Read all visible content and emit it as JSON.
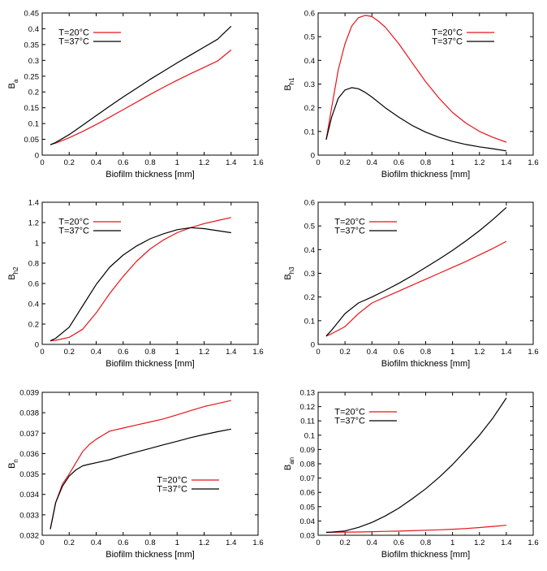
{
  "colors": {
    "t20": "#e8141b",
    "t37": "#000000",
    "axis": "#000000"
  },
  "chart_data": [
    {
      "type": "line",
      "xlabel": "Biofilm thickness [mm]",
      "ylabel": "B_a",
      "ylabel_main": "B",
      "ylabel_sub": "a",
      "xlim": [
        0,
        1.6
      ],
      "ylim": [
        0,
        0.45
      ],
      "xticks": [
        "0",
        "0.2",
        "0.4",
        "0.6",
        "0.8",
        "1",
        "1.2",
        "1.4",
        "1.6"
      ],
      "yticks": [
        "0",
        "0.05",
        "0.1",
        "0.15",
        "0.2",
        "0.25",
        "0.3",
        "0.35",
        "0.4",
        "0.45"
      ],
      "legend": "top-left",
      "series": [
        {
          "name": "T=20°C",
          "color": "#e8141b",
          "x": [
            0.06,
            0.1,
            0.2,
            0.3,
            0.4,
            0.5,
            0.6,
            0.7,
            0.8,
            0.9,
            1.0,
            1.1,
            1.2,
            1.3,
            1.4
          ],
          "y": [
            0.033,
            0.038,
            0.055,
            0.075,
            0.097,
            0.12,
            0.144,
            0.168,
            0.192,
            0.215,
            0.237,
            0.258,
            0.278,
            0.298,
            0.333
          ]
        },
        {
          "name": "T=37°C",
          "color": "#000000",
          "x": [
            0.06,
            0.1,
            0.2,
            0.3,
            0.4,
            0.5,
            0.6,
            0.7,
            0.8,
            0.9,
            1.0,
            1.1,
            1.2,
            1.3,
            1.4
          ],
          "y": [
            0.033,
            0.04,
            0.065,
            0.095,
            0.125,
            0.155,
            0.184,
            0.212,
            0.24,
            0.266,
            0.292,
            0.317,
            0.342,
            0.367,
            0.408
          ]
        }
      ]
    },
    {
      "type": "line",
      "xlabel": "Biofilm thickness [mm]",
      "ylabel": "B_h1",
      "ylabel_main": "B",
      "ylabel_sub": "h1",
      "xlim": [
        0,
        1.6
      ],
      "ylim": [
        0,
        0.6
      ],
      "xticks": [
        "0",
        "0.2",
        "0.4",
        "0.6",
        "0.8",
        "1",
        "1.2",
        "1.4",
        "1.6"
      ],
      "yticks": [
        "0",
        "0.1",
        "0.2",
        "0.3",
        "0.4",
        "0.5",
        "0.6"
      ],
      "legend": "top-right",
      "series": [
        {
          "name": "T=20°C",
          "color": "#e8141b",
          "x": [
            0.06,
            0.1,
            0.15,
            0.2,
            0.25,
            0.3,
            0.35,
            0.4,
            0.45,
            0.5,
            0.6,
            0.7,
            0.8,
            0.9,
            1.0,
            1.1,
            1.2,
            1.3,
            1.4
          ],
          "y": [
            0.065,
            0.2,
            0.36,
            0.47,
            0.545,
            0.58,
            0.59,
            0.585,
            0.565,
            0.54,
            0.47,
            0.39,
            0.31,
            0.24,
            0.18,
            0.135,
            0.1,
            0.075,
            0.055
          ]
        },
        {
          "name": "T=37°C",
          "color": "#000000",
          "x": [
            0.06,
            0.1,
            0.15,
            0.2,
            0.25,
            0.3,
            0.35,
            0.4,
            0.5,
            0.6,
            0.7,
            0.8,
            0.9,
            1.0,
            1.1,
            1.2,
            1.3,
            1.4
          ],
          "y": [
            0.065,
            0.16,
            0.24,
            0.275,
            0.285,
            0.28,
            0.265,
            0.245,
            0.2,
            0.16,
            0.125,
            0.097,
            0.075,
            0.058,
            0.045,
            0.035,
            0.027,
            0.018
          ]
        }
      ]
    },
    {
      "type": "line",
      "xlabel": "Biofilm thickness [mm]",
      "ylabel": "B_h2",
      "ylabel_main": "B",
      "ylabel_sub": "h2",
      "xlim": [
        0,
        1.6
      ],
      "ylim": [
        0,
        1.4
      ],
      "xticks": [
        "0",
        "0.2",
        "0.4",
        "0.6",
        "0.8",
        "1",
        "1.2",
        "1.4",
        "1.6"
      ],
      "yticks": [
        "0",
        "0.2",
        "0.4",
        "0.6",
        "0.8",
        "1",
        "1.2",
        "1.4"
      ],
      "legend": "top-left",
      "series": [
        {
          "name": "T=20°C",
          "color": "#e8141b",
          "x": [
            0.06,
            0.1,
            0.2,
            0.3,
            0.4,
            0.5,
            0.6,
            0.7,
            0.8,
            0.9,
            1.0,
            1.1,
            1.2,
            1.3,
            1.4
          ],
          "y": [
            0.035,
            0.04,
            0.07,
            0.15,
            0.31,
            0.5,
            0.67,
            0.82,
            0.94,
            1.03,
            1.1,
            1.15,
            1.19,
            1.22,
            1.25
          ]
        },
        {
          "name": "T=37°C",
          "color": "#000000",
          "x": [
            0.06,
            0.1,
            0.2,
            0.3,
            0.4,
            0.5,
            0.6,
            0.7,
            0.8,
            0.9,
            1.0,
            1.1,
            1.2,
            1.3,
            1.4
          ],
          "y": [
            0.035,
            0.06,
            0.17,
            0.38,
            0.59,
            0.76,
            0.88,
            0.97,
            1.04,
            1.09,
            1.13,
            1.15,
            1.14,
            1.12,
            1.1
          ]
        }
      ]
    },
    {
      "type": "line",
      "xlabel": "Biofilm thickness [mm]",
      "ylabel": "B_h3",
      "ylabel_main": "B",
      "ylabel_sub": "h3",
      "xlim": [
        0,
        1.6
      ],
      "ylim": [
        0,
        0.6
      ],
      "xticks": [
        "0",
        "0.2",
        "0.4",
        "0.6",
        "0.8",
        "1",
        "1.2",
        "1.4",
        "1.6"
      ],
      "yticks": [
        "0",
        "0.1",
        "0.2",
        "0.3",
        "0.4",
        "0.5",
        "0.6"
      ],
      "legend": "top-left",
      "series": [
        {
          "name": "T=20°C",
          "color": "#e8141b",
          "x": [
            0.06,
            0.1,
            0.2,
            0.3,
            0.4,
            0.5,
            0.6,
            0.7,
            0.8,
            0.9,
            1.0,
            1.1,
            1.2,
            1.3,
            1.4
          ],
          "y": [
            0.035,
            0.045,
            0.075,
            0.13,
            0.175,
            0.2,
            0.225,
            0.25,
            0.275,
            0.3,
            0.325,
            0.35,
            0.378,
            0.405,
            0.435
          ]
        },
        {
          "name": "T=37°C",
          "color": "#000000",
          "x": [
            0.06,
            0.1,
            0.2,
            0.3,
            0.4,
            0.5,
            0.6,
            0.7,
            0.8,
            0.9,
            1.0,
            1.1,
            1.2,
            1.3,
            1.4
          ],
          "y": [
            0.035,
            0.06,
            0.13,
            0.175,
            0.2,
            0.228,
            0.258,
            0.29,
            0.325,
            0.36,
            0.397,
            0.437,
            0.48,
            0.527,
            0.578
          ]
        }
      ]
    },
    {
      "type": "line",
      "xlabel": "Biofilm thickness [mm]",
      "ylabel": "B_n",
      "ylabel_main": "B",
      "ylabel_sub": "n",
      "xlim": [
        0,
        1.6
      ],
      "ylim": [
        0.032,
        0.039
      ],
      "xticks": [
        "0",
        "0.2",
        "0.4",
        "0.6",
        "0.8",
        "1",
        "1.2",
        "1.4",
        "1.6"
      ],
      "yticks": [
        "0.032",
        "0.033",
        "0.034",
        "0.035",
        "0.036",
        "0.037",
        "0.038",
        "0.039"
      ],
      "legend": "bottom-right",
      "series": [
        {
          "name": "T=20°C",
          "color": "#e8141b",
          "x": [
            0.06,
            0.1,
            0.15,
            0.2,
            0.25,
            0.3,
            0.35,
            0.4,
            0.5,
            0.6,
            0.7,
            0.8,
            0.9,
            1.0,
            1.1,
            1.2,
            1.3,
            1.4
          ],
          "y": [
            0.0323,
            0.0336,
            0.0345,
            0.035,
            0.03555,
            0.0361,
            0.03645,
            0.0367,
            0.0371,
            0.03725,
            0.0374,
            0.03755,
            0.0377,
            0.0379,
            0.0381,
            0.0383,
            0.03845,
            0.0386
          ]
        },
        {
          "name": "T=37°C",
          "color": "#000000",
          "x": [
            0.06,
            0.1,
            0.15,
            0.2,
            0.25,
            0.3,
            0.35,
            0.4,
            0.5,
            0.6,
            0.7,
            0.8,
            0.9,
            1.0,
            1.1,
            1.2,
            1.3,
            1.4
          ],
          "y": [
            0.0323,
            0.0336,
            0.0344,
            0.0349,
            0.0352,
            0.0354,
            0.03548,
            0.03555,
            0.0357,
            0.0359,
            0.03608,
            0.03625,
            0.03643,
            0.0366,
            0.03678,
            0.03693,
            0.03707,
            0.0372
          ]
        }
      ]
    },
    {
      "type": "line",
      "xlabel": "Biofilm thickness [mm]",
      "ylabel": "B_an",
      "ylabel_main": "B",
      "ylabel_sub": "an",
      "xlim": [
        0,
        1.6
      ],
      "ylim": [
        0.03,
        0.13
      ],
      "xticks": [
        "0",
        "0.2",
        "0.4",
        "0.6",
        "0.8",
        "1",
        "1.2",
        "1.4",
        "1.6"
      ],
      "yticks": [
        "0.03",
        "0.04",
        "0.05",
        "0.06",
        "0.07",
        "0.08",
        "0.09",
        "0.1",
        "0.11",
        "0.12",
        "0.13"
      ],
      "legend": "top-left",
      "series": [
        {
          "name": "T=20°C",
          "color": "#e8141b",
          "x": [
            0.06,
            0.1,
            0.2,
            0.3,
            0.4,
            0.5,
            0.6,
            0.7,
            0.8,
            0.9,
            1.0,
            1.1,
            1.2,
            1.3,
            1.4
          ],
          "y": [
            0.032,
            0.0321,
            0.0322,
            0.0323,
            0.0325,
            0.0327,
            0.0329,
            0.0332,
            0.0335,
            0.0338,
            0.0342,
            0.0347,
            0.0354,
            0.0362,
            0.037
          ]
        },
        {
          "name": "T=37°C",
          "color": "#000000",
          "x": [
            0.06,
            0.1,
            0.2,
            0.3,
            0.4,
            0.5,
            0.6,
            0.7,
            0.8,
            0.9,
            1.0,
            1.1,
            1.2,
            1.3,
            1.4
          ],
          "y": [
            0.032,
            0.0322,
            0.033,
            0.0355,
            0.039,
            0.0435,
            0.049,
            0.0555,
            0.0625,
            0.0705,
            0.0795,
            0.0895,
            0.1,
            0.112,
            0.126
          ]
        }
      ]
    }
  ]
}
